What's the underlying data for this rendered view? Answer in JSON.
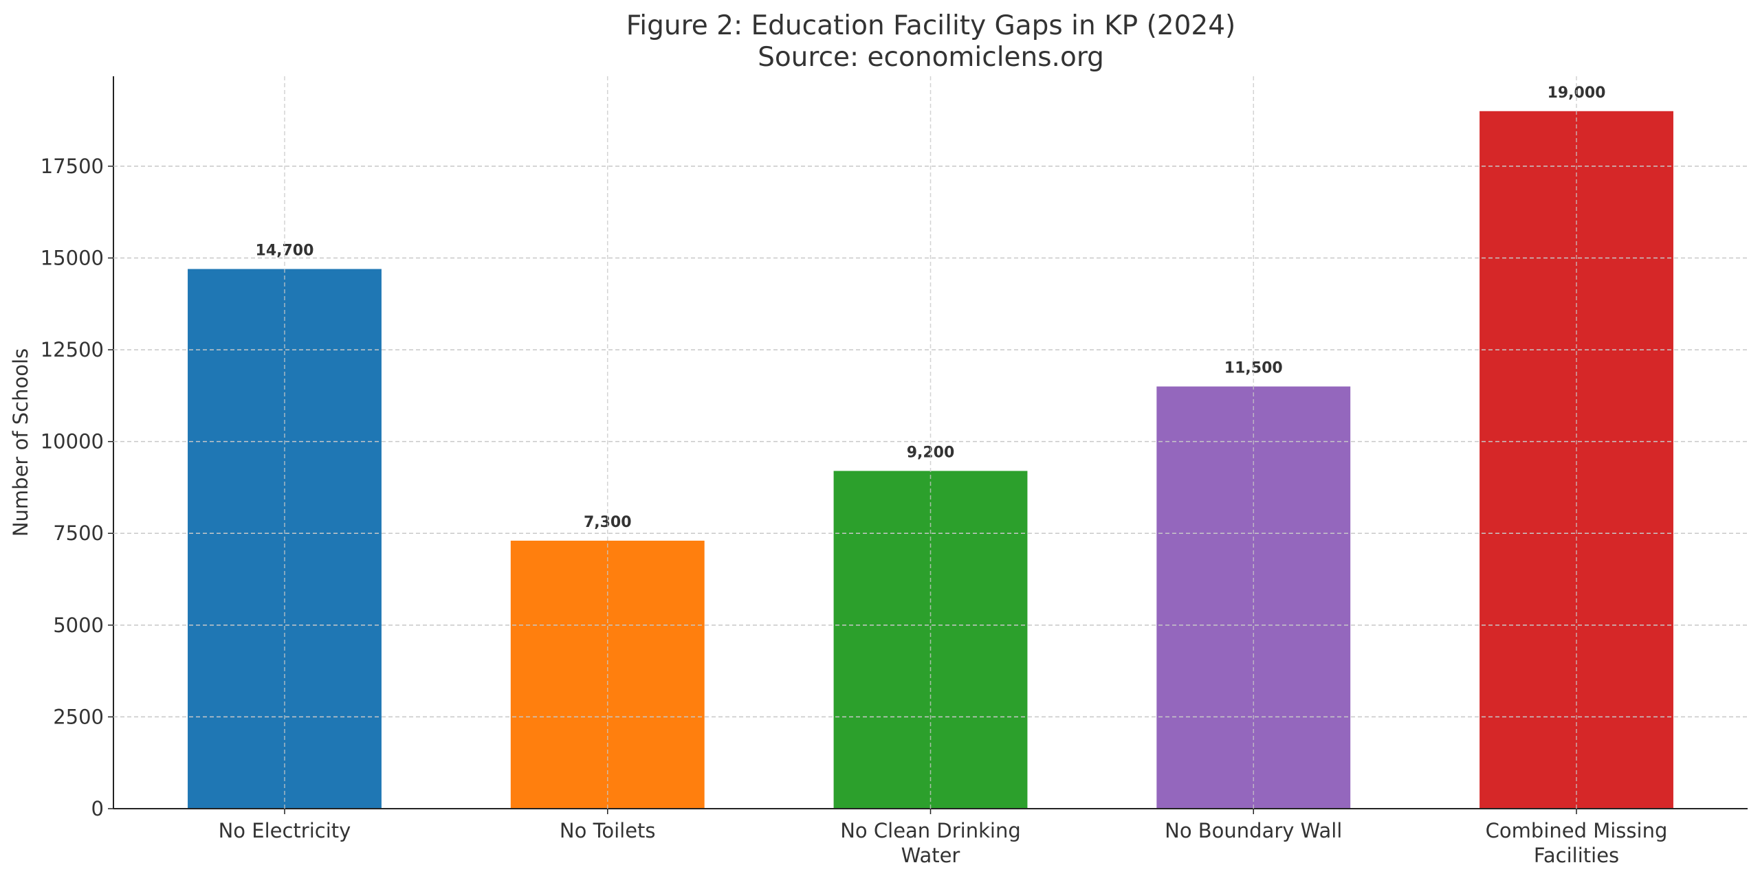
{
  "chart_data": {
    "type": "bar",
    "title": "Figure 2: Education Facility Gaps in KP (2024)",
    "subtitle": "Source: economiclens.org",
    "xlabel": "",
    "ylabel": "Number of Schools",
    "categories": [
      [
        "No Electricity"
      ],
      [
        "No Toilets"
      ],
      [
        "No Clean Drinking",
        "Water"
      ],
      [
        "No Boundary Wall"
      ],
      [
        "Combined Missing",
        "Facilities"
      ]
    ],
    "values": [
      14700,
      7300,
      9200,
      11500,
      19000
    ],
    "data_labels": [
      "14,700",
      "7,300",
      "9,200",
      "11,500",
      "19,000"
    ],
    "colors": [
      "#1f77b4",
      "#ff7f0e",
      "#2ca02c",
      "#9467bd",
      "#d62728"
    ],
    "ylim": [
      0,
      19950
    ],
    "yticks": [
      0,
      2500,
      5000,
      7500,
      10000,
      12500,
      15000,
      17500
    ],
    "ytick_labels": [
      "0",
      "2500",
      "5000",
      "7500",
      "10000",
      "12500",
      "15000",
      "17500"
    ],
    "grid": true,
    "grid_style": "dashed"
  }
}
